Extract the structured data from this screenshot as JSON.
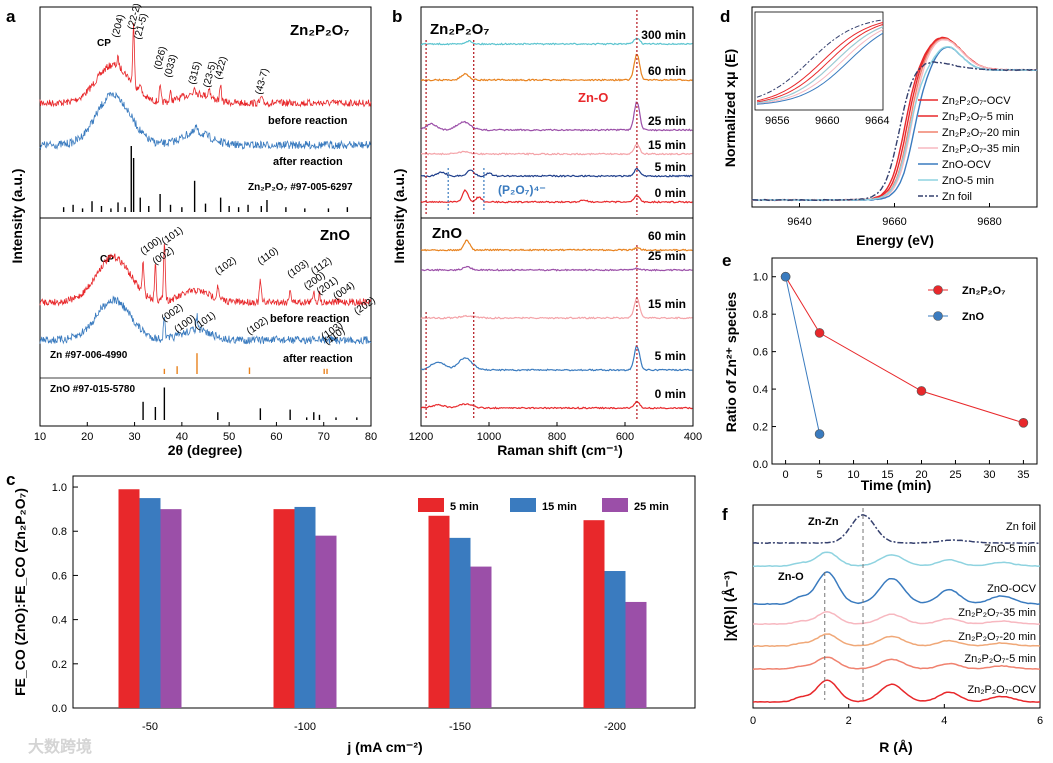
{
  "colors": {
    "red": "#e8282b",
    "blue": "#3a7bbf",
    "purple": "#9b4fa8",
    "orange": "#e8821e",
    "pink": "#f4a3a8",
    "cyan": "#5bc4cf",
    "navy": "#1f3f8c",
    "lightcyan": "#8fd3e0",
    "darkred": "#b8232a",
    "salmon": "#f0826f",
    "peach": "#f0a878",
    "lightpink": "#f7b8c0",
    "darkblue": "#35406e"
  },
  "watermark": "大数跨境",
  "chart_data": [
    {
      "panel": "a",
      "type": "line",
      "title_top": "Zn₂P₂O₇",
      "title_bottom": "ZnO",
      "xlabel": "2θ (degree)",
      "ylabel": "Intensity (a.u.)",
      "xlim": [
        10,
        80
      ],
      "xticks": [
        "10",
        "20",
        "30",
        "40",
        "50",
        "60",
        "70",
        "80"
      ],
      "labels": {
        "before": "before reaction",
        "after": "after reaction",
        "ref_top": "Zn₂P₂O₇ #97-005-6297",
        "ref_zn": "Zn #97-006-4990",
        "ref_zno": "ZnO #97-015-5780",
        "cp": "CP"
      },
      "peaks_top": [
        {
          "x": 26.5,
          "label": "(204)"
        },
        {
          "x": 29.8,
          "label": "(22-2)"
        },
        {
          "x": 31.2,
          "label": "(21-5)"
        },
        {
          "x": 35.4,
          "label": "(026)"
        },
        {
          "x": 37.6,
          "label": "(033)"
        },
        {
          "x": 42.7,
          "label": "(315)"
        },
        {
          "x": 45.8,
          "label": "(23-5)"
        },
        {
          "x": 48.2,
          "label": "(422)"
        },
        {
          "x": 56.8,
          "label": "(43-7)"
        }
      ],
      "peaks_bottom": [
        {
          "x": 31.8,
          "label": "(100)"
        },
        {
          "x": 34.4,
          "label": "(002)"
        },
        {
          "x": 36.3,
          "label": "(101)"
        },
        {
          "x": 47.6,
          "label": "(102)"
        },
        {
          "x": 56.6,
          "label": "(110)"
        },
        {
          "x": 62.9,
          "label": "(103)"
        },
        {
          "x": 66.4,
          "label": "(200)"
        },
        {
          "x": 67.9,
          "label": "(112)"
        },
        {
          "x": 69.1,
          "label": "(201)"
        },
        {
          "x": 72.6,
          "label": "(004)"
        },
        {
          "x": 77.0,
          "label": "(202)"
        }
      ],
      "peaks_zn": [
        {
          "x": 36.3,
          "label": "(002)"
        },
        {
          "x": 39.0,
          "label": "(100)"
        },
        {
          "x": 43.2,
          "label": "(101)"
        },
        {
          "x": 54.3,
          "label": "(102)"
        },
        {
          "x": 70.1,
          "label": "(103)"
        },
        {
          "x": 70.7,
          "label": "(110)"
        }
      ]
    },
    {
      "panel": "b",
      "type": "line",
      "title_top": "Zn₂P₂O₇",
      "title_bottom": "ZnO",
      "xlabel": "Raman shift (cm⁻¹)",
      "ylabel": "Intensity (a.u.)",
      "xlim": [
        1200,
        400
      ],
      "xticks": [
        "1200",
        "1000",
        "800",
        "600",
        "400"
      ],
      "annotations": {
        "zno": "Zn-O",
        "p2o7": "(P₂O₇)⁴⁻"
      },
      "series_top": [
        "300 min",
        "60 min",
        "25 min",
        "15 min",
        "5 min",
        "0 min"
      ],
      "series_bottom": [
        "60 min",
        "25 min",
        "15 min",
        "5 min",
        "0 min"
      ]
    },
    {
      "panel": "c",
      "type": "bar",
      "xlabel": "j (mA cm⁻²)",
      "ylabel": "FE_CO (ZnO):FE_CO (Zn₂P₂O₇)",
      "ylim": [
        0,
        1.0
      ],
      "yticks": [
        "0.0",
        "0.2",
        "0.4",
        "0.6",
        "0.8",
        "1.0"
      ],
      "categories": [
        "-50",
        "-100",
        "-150",
        "-200"
      ],
      "series": [
        {
          "name": "5 min",
          "values": [
            0.99,
            0.9,
            0.87,
            0.85
          ]
        },
        {
          "name": "15 min",
          "values": [
            0.95,
            0.91,
            0.77,
            0.62
          ]
        },
        {
          "name": "25 min",
          "values": [
            0.9,
            0.78,
            0.64,
            0.48
          ]
        }
      ]
    },
    {
      "panel": "d",
      "type": "line",
      "xlabel": "Energy (eV)",
      "ylabel": "Normalized xμ (E)",
      "xlim": [
        9630,
        9690
      ],
      "xticks": [
        "9640",
        "9660",
        "9680"
      ],
      "inset_xticks": [
        "9656",
        "9660",
        "9664"
      ],
      "legend": [
        "Zn₂P₂O₇-OCV",
        "Zn₂P₂O₇-5 min",
        "Zn₂P₂O₇-20 min",
        "Zn₂P₂O₇-35 min",
        "ZnO-OCV",
        "ZnO-5 min",
        "Zn foil"
      ]
    },
    {
      "panel": "e",
      "type": "scatter",
      "xlabel": "Time (min)",
      "ylabel": "Ratio of Zn²⁺ species",
      "xlim": [
        -2,
        37
      ],
      "ylim": [
        0,
        1.1
      ],
      "xticks": [
        "0",
        "5",
        "10",
        "15",
        "20",
        "25",
        "30",
        "35"
      ],
      "yticks": [
        "0.0",
        "0.2",
        "0.4",
        "0.6",
        "0.8",
        "1.0"
      ],
      "series": [
        {
          "name": "Zn₂P₂O₇",
          "x": [
            0,
            5,
            20,
            35
          ],
          "y": [
            1.0,
            0.7,
            0.39,
            0.22
          ]
        },
        {
          "name": "ZnO",
          "x": [
            0,
            5
          ],
          "y": [
            1.0,
            0.16
          ]
        }
      ]
    },
    {
      "panel": "f",
      "type": "line",
      "xlabel": "R (Å)",
      "ylabel": "|χ(R)| (Å⁻³)",
      "xlim": [
        0,
        6
      ],
      "xticks": [
        "0",
        "2",
        "4",
        "6"
      ],
      "annotations": {
        "znzn": "Zn-Zn",
        "zno": "Zn-O"
      },
      "series": [
        "Zn foil",
        "ZnO-5 min",
        "ZnO-OCV",
        "Zn₂P₂O₇-35 min",
        "Zn₂P₂O₇-20 min",
        "Zn₂P₂O₇-5 min",
        "Zn₂P₂O₇-OCV"
      ]
    }
  ]
}
